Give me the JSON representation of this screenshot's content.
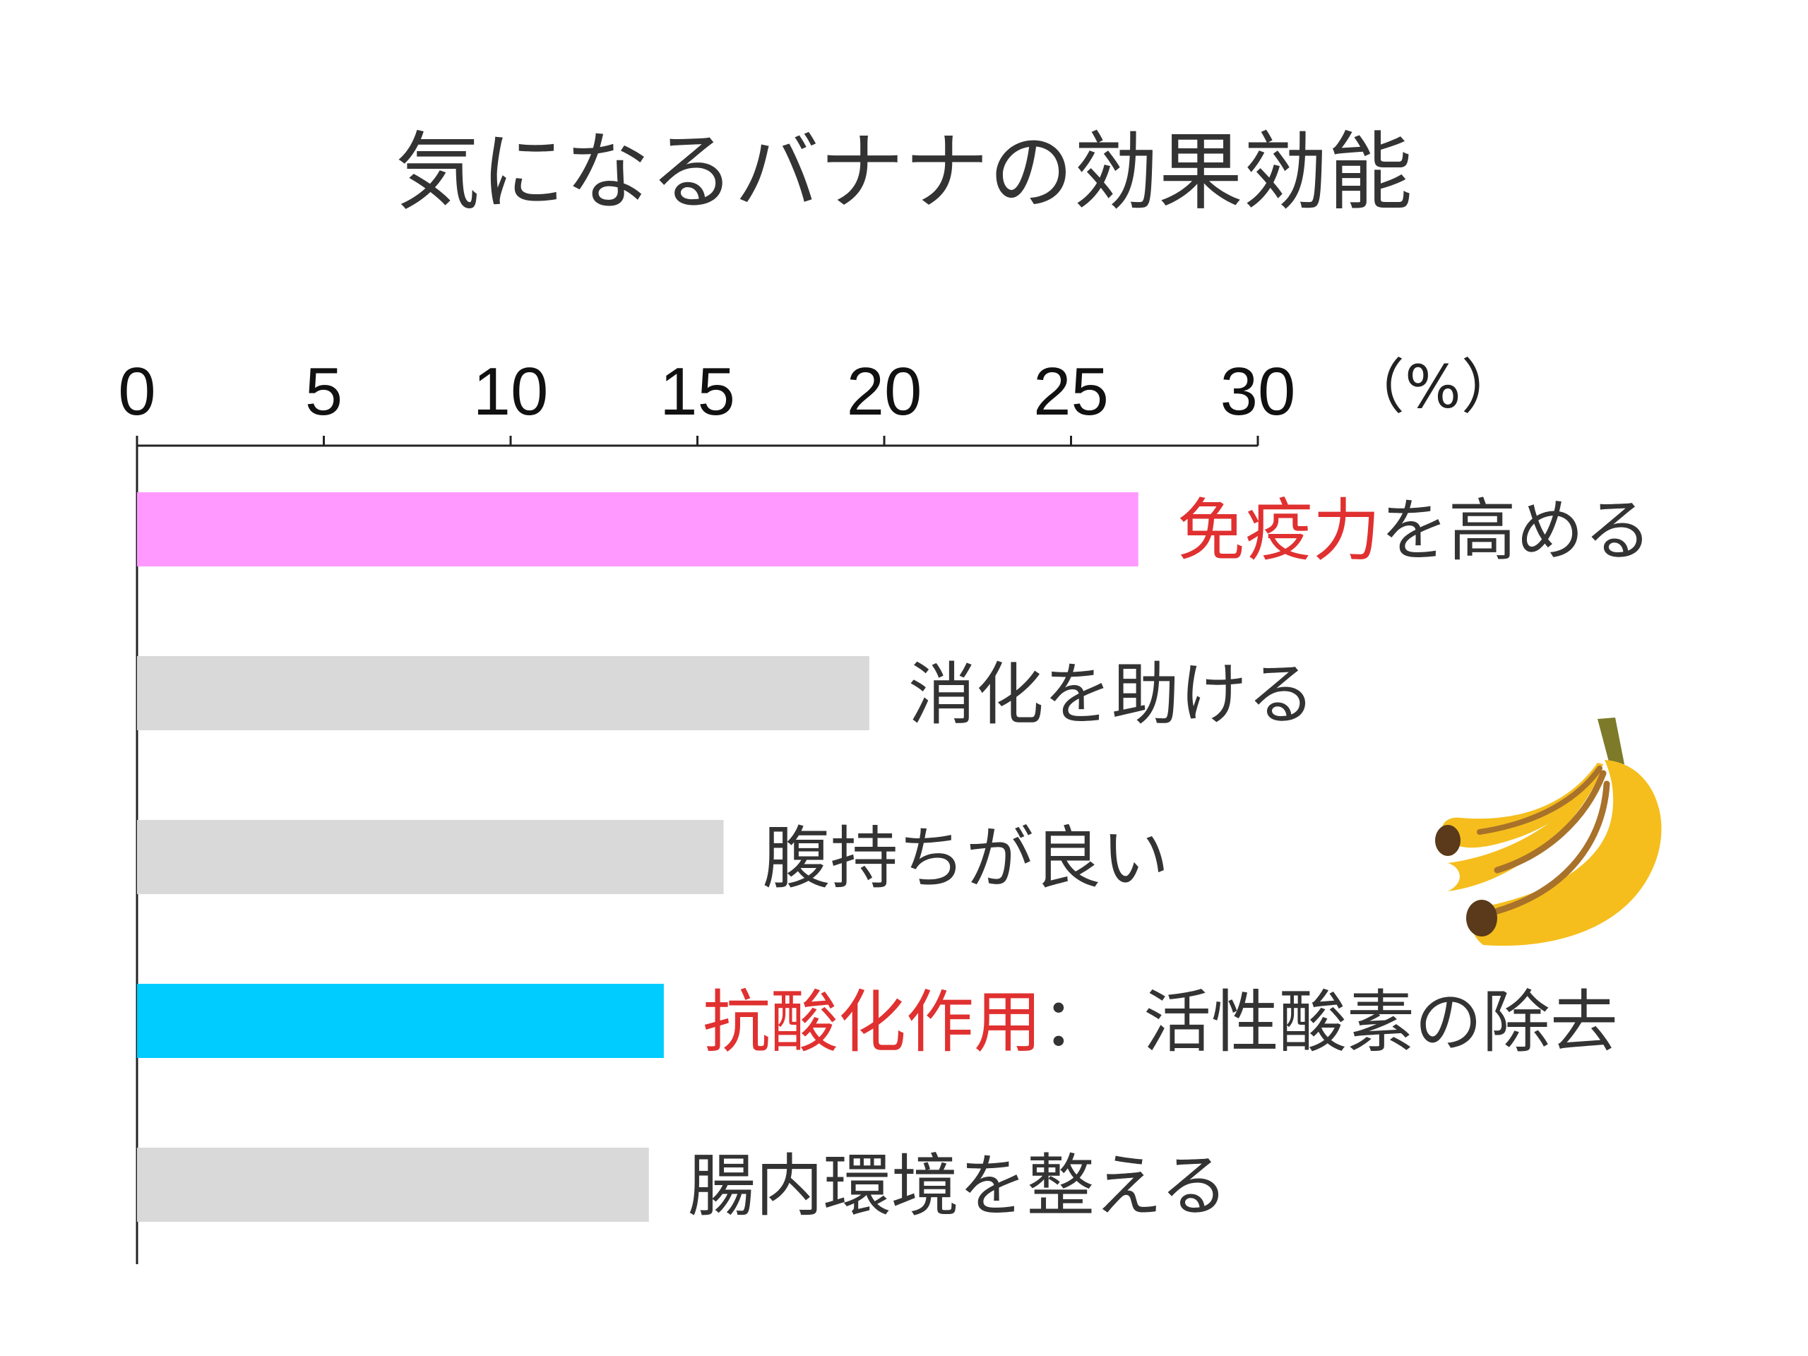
{
  "chart_data": {
    "type": "bar",
    "orientation": "horizontal",
    "title": "気になるバナナの効果効能",
    "unit": "（%）",
    "xlim": [
      0,
      30
    ],
    "ticks": [
      "0",
      "5",
      "10",
      "15",
      "20",
      "25",
      "30"
    ],
    "grid": false,
    "categories": [
      {
        "highlight": "免疫力",
        "rest": "を高める",
        "value": 26.8,
        "color": "#ff99ff"
      },
      {
        "highlight": "",
        "rest": "消化を助ける",
        "value": 19.6,
        "color": "#d9d9d9"
      },
      {
        "highlight": "",
        "rest": "腹持ちが良い",
        "value": 15.7,
        "color": "#d9d9d9"
      },
      {
        "highlight": "抗酸化作用",
        "rest": "：　活性酸素の除去",
        "value": 14.1,
        "color": "#00ccff"
      },
      {
        "highlight": "",
        "rest": "腸内環境を整える",
        "value": 13.7,
        "color": "#d9d9d9"
      }
    ]
  },
  "colors": {
    "highlight_text": "#e03030",
    "axis": "#222222"
  },
  "decoration": {
    "icon": "banana-icon"
  }
}
